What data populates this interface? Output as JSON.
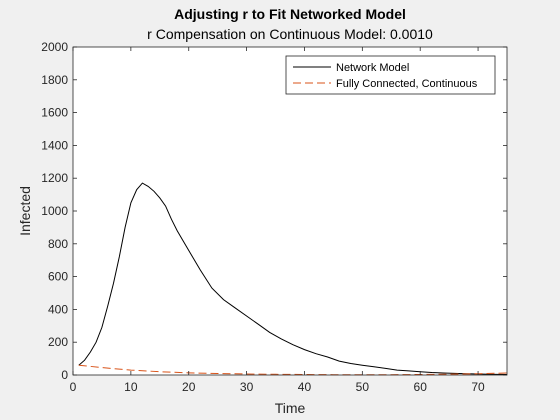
{
  "chart_data": {
    "type": "line",
    "title": "Adjusting r to Fit Networked Model",
    "subtitle": "r Compensation on Continuous Model: 0.0010",
    "xlabel": "Time",
    "ylabel": "Infected",
    "xlim": [
      0,
      75
    ],
    "ylim": [
      0,
      2000
    ],
    "xticks": [
      0,
      10,
      20,
      30,
      40,
      50,
      60,
      70
    ],
    "yticks": [
      0,
      200,
      400,
      600,
      800,
      1000,
      1200,
      1400,
      1600,
      1800,
      2000
    ],
    "grid": false,
    "legend_placement": "top-right",
    "series": [
      {
        "name": "Network Model",
        "color": "#000000",
        "style": "solid",
        "x": [
          1,
          2,
          3,
          4,
          5,
          6,
          7,
          8,
          9,
          10,
          11,
          12,
          13,
          14,
          15,
          16,
          17,
          18,
          19,
          20,
          22,
          24,
          26,
          28,
          30,
          32,
          34,
          36,
          38,
          40,
          42,
          44,
          46,
          48,
          50,
          52,
          54,
          56,
          58,
          60,
          62,
          64,
          66,
          68,
          70,
          72,
          75
        ],
        "y": [
          60,
          90,
          140,
          200,
          290,
          420,
          560,
          720,
          900,
          1050,
          1130,
          1170,
          1150,
          1120,
          1080,
          1030,
          950,
          880,
          820,
          760,
          640,
          530,
          460,
          410,
          360,
          310,
          260,
          220,
          185,
          155,
          130,
          110,
          85,
          70,
          60,
          50,
          40,
          30,
          25,
          20,
          15,
          12,
          10,
          8,
          6,
          4,
          3
        ]
      },
      {
        "name": "Fully Connected, Continuous",
        "color": "#d95319",
        "style": "dashed",
        "x": [
          1,
          5,
          10,
          15,
          20,
          25,
          30,
          35,
          40,
          45,
          50,
          55,
          60,
          65,
          70,
          75
        ],
        "y": [
          60,
          45,
          30,
          20,
          13,
          9,
          6,
          4,
          3,
          2,
          2,
          2,
          3,
          5,
          8,
          12
        ]
      }
    ]
  }
}
